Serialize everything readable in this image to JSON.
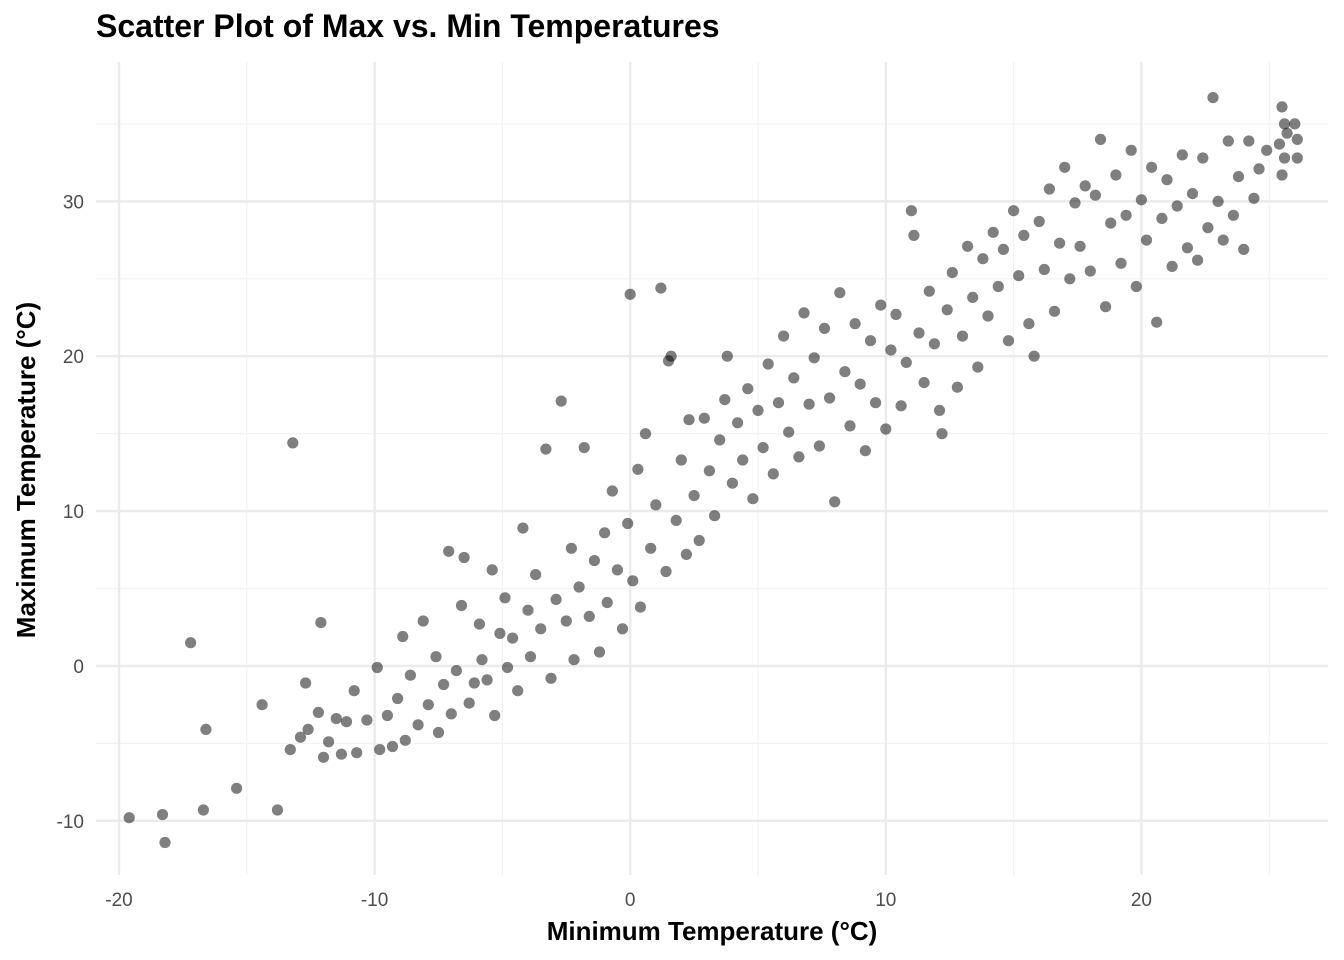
{
  "chart_data": {
    "type": "scatter",
    "title": "Scatter Plot of Max vs. Min Temperatures",
    "xlabel": "Minimum Temperature (°C)",
    "ylabel": "Maximum Temperature (°C)",
    "xlim": [
      -20.9,
      27.3
    ],
    "ylim": [
      -13.5,
      39.0
    ],
    "x_ticks": [
      -20,
      -10,
      0,
      10,
      20
    ],
    "x_tick_labels": [
      "-20",
      "-10",
      "0",
      "10",
      "20"
    ],
    "y_ticks": [
      -10,
      0,
      10,
      20,
      30
    ],
    "y_tick_labels": [
      "-10",
      "0",
      "10",
      "20",
      "30"
    ],
    "grid": true,
    "legend": "none",
    "point_color": "#000000",
    "point_alpha": 0.5,
    "points": [
      [
        -19.6,
        -9.8
      ],
      [
        -18.3,
        -9.6
      ],
      [
        -18.2,
        -11.4
      ],
      [
        -16.7,
        -9.3
      ],
      [
        -15.4,
        -7.9
      ],
      [
        -13.8,
        -9.3
      ],
      [
        -17.2,
        1.5
      ],
      [
        -16.6,
        -4.1
      ],
      [
        -14.4,
        -2.5
      ],
      [
        -13.2,
        14.4
      ],
      [
        -12.7,
        -1.1
      ],
      [
        -12.1,
        2.8
      ],
      [
        -13.3,
        -5.4
      ],
      [
        -12.9,
        -4.6
      ],
      [
        -12.6,
        -4.1
      ],
      [
        -12.2,
        -3.0
      ],
      [
        -12.0,
        -5.9
      ],
      [
        -11.8,
        -4.9
      ],
      [
        -11.5,
        -3.4
      ],
      [
        -11.3,
        -5.7
      ],
      [
        -11.1,
        -3.6
      ],
      [
        -10.8,
        -1.6
      ],
      [
        -10.7,
        -5.6
      ],
      [
        -10.3,
        -3.5
      ],
      [
        -9.9,
        -0.1
      ],
      [
        -9.8,
        -5.4
      ],
      [
        -9.5,
        -3.2
      ],
      [
        -9.3,
        -5.2
      ],
      [
        -9.1,
        -2.1
      ],
      [
        -8.9,
        1.9
      ],
      [
        -8.8,
        -4.8
      ],
      [
        -8.6,
        -0.6
      ],
      [
        -8.3,
        -3.8
      ],
      [
        -8.1,
        2.9
      ],
      [
        -7.9,
        -2.5
      ],
      [
        -7.6,
        0.6
      ],
      [
        -7.5,
        -4.3
      ],
      [
        -7.3,
        -1.2
      ],
      [
        -7.1,
        7.4
      ],
      [
        -7.0,
        -3.1
      ],
      [
        -6.8,
        -0.3
      ],
      [
        -6.6,
        3.9
      ],
      [
        -6.5,
        7.0
      ],
      [
        -6.3,
        -2.4
      ],
      [
        -6.1,
        -1.1
      ],
      [
        -5.9,
        2.7
      ],
      [
        -5.8,
        0.4
      ],
      [
        -5.6,
        -0.9
      ],
      [
        -5.4,
        6.2
      ],
      [
        -5.3,
        -3.2
      ],
      [
        -5.1,
        2.1
      ],
      [
        -4.9,
        4.4
      ],
      [
        -4.8,
        -0.1
      ],
      [
        -4.6,
        1.8
      ],
      [
        -4.4,
        -1.6
      ],
      [
        -4.2,
        8.9
      ],
      [
        -4.0,
        3.6
      ],
      [
        -3.9,
        0.6
      ],
      [
        -3.7,
        5.9
      ],
      [
        -3.5,
        2.4
      ],
      [
        -3.3,
        14.0
      ],
      [
        -3.1,
        -0.8
      ],
      [
        -2.9,
        4.3
      ],
      [
        -2.7,
        17.1
      ],
      [
        -2.5,
        2.9
      ],
      [
        -2.3,
        7.6
      ],
      [
        -2.2,
        0.4
      ],
      [
        -2.0,
        5.1
      ],
      [
        -1.8,
        14.1
      ],
      [
        -1.6,
        3.2
      ],
      [
        -1.4,
        6.8
      ],
      [
        -1.2,
        0.9
      ],
      [
        -1.0,
        8.6
      ],
      [
        -0.9,
        4.1
      ],
      [
        -0.7,
        11.3
      ],
      [
        -0.5,
        6.2
      ],
      [
        -0.3,
        2.4
      ],
      [
        -0.1,
        9.2
      ],
      [
        0.0,
        24.0
      ],
      [
        0.1,
        5.5
      ],
      [
        0.3,
        12.7
      ],
      [
        0.4,
        3.8
      ],
      [
        0.6,
        15.0
      ],
      [
        0.8,
        7.6
      ],
      [
        1.0,
        10.4
      ],
      [
        1.2,
        24.4
      ],
      [
        1.4,
        6.1
      ],
      [
        1.5,
        19.7
      ],
      [
        1.6,
        20.0
      ],
      [
        1.8,
        9.4
      ],
      [
        2.0,
        13.3
      ],
      [
        2.2,
        7.2
      ],
      [
        2.3,
        15.9
      ],
      [
        2.5,
        11.0
      ],
      [
        2.7,
        8.1
      ],
      [
        2.9,
        16.0
      ],
      [
        3.1,
        12.6
      ],
      [
        3.3,
        9.7
      ],
      [
        3.5,
        14.6
      ],
      [
        3.7,
        17.2
      ],
      [
        3.8,
        20.0
      ],
      [
        4.0,
        11.8
      ],
      [
        4.2,
        15.7
      ],
      [
        4.4,
        13.3
      ],
      [
        4.6,
        17.9
      ],
      [
        4.8,
        10.8
      ],
      [
        5.0,
        16.5
      ],
      [
        5.2,
        14.1
      ],
      [
        5.4,
        19.5
      ],
      [
        5.6,
        12.4
      ],
      [
        5.8,
        17.0
      ],
      [
        6.0,
        21.3
      ],
      [
        6.2,
        15.1
      ],
      [
        6.4,
        18.6
      ],
      [
        6.6,
        13.5
      ],
      [
        6.8,
        22.8
      ],
      [
        7.0,
        16.9
      ],
      [
        7.2,
        19.9
      ],
      [
        7.4,
        14.2
      ],
      [
        7.6,
        21.8
      ],
      [
        7.8,
        17.3
      ],
      [
        8.0,
        10.6
      ],
      [
        8.2,
        24.1
      ],
      [
        8.4,
        19.0
      ],
      [
        8.6,
        15.5
      ],
      [
        8.8,
        22.1
      ],
      [
        9.0,
        18.2
      ],
      [
        9.2,
        13.9
      ],
      [
        9.4,
        21.0
      ],
      [
        9.6,
        17.0
      ],
      [
        9.8,
        23.3
      ],
      [
        10.0,
        15.3
      ],
      [
        10.2,
        20.4
      ],
      [
        10.4,
        22.7
      ],
      [
        10.6,
        16.8
      ],
      [
        10.8,
        19.6
      ],
      [
        11.0,
        29.4
      ],
      [
        11.1,
        27.8
      ],
      [
        11.3,
        21.5
      ],
      [
        11.5,
        18.3
      ],
      [
        11.7,
        24.2
      ],
      [
        11.9,
        20.8
      ],
      [
        12.1,
        16.5
      ],
      [
        12.2,
        15.0
      ],
      [
        12.4,
        23.0
      ],
      [
        12.6,
        25.4
      ],
      [
        12.8,
        18.0
      ],
      [
        13.0,
        21.3
      ],
      [
        13.2,
        27.1
      ],
      [
        13.4,
        23.8
      ],
      [
        13.6,
        19.3
      ],
      [
        13.8,
        26.3
      ],
      [
        14.0,
        22.6
      ],
      [
        14.2,
        28.0
      ],
      [
        14.4,
        24.5
      ],
      [
        14.6,
        26.9
      ],
      [
        14.8,
        21.0
      ],
      [
        15.0,
        29.4
      ],
      [
        15.2,
        25.2
      ],
      [
        15.4,
        27.8
      ],
      [
        15.6,
        22.1
      ],
      [
        15.8,
        20.0
      ],
      [
        16.0,
        28.7
      ],
      [
        16.2,
        25.6
      ],
      [
        16.4,
        30.8
      ],
      [
        16.6,
        22.9
      ],
      [
        16.8,
        27.3
      ],
      [
        17.0,
        32.2
      ],
      [
        17.2,
        25.0
      ],
      [
        17.4,
        29.9
      ],
      [
        17.6,
        27.1
      ],
      [
        17.8,
        31.0
      ],
      [
        18.0,
        25.5
      ],
      [
        18.2,
        30.4
      ],
      [
        18.4,
        34.0
      ],
      [
        18.6,
        23.2
      ],
      [
        18.8,
        28.6
      ],
      [
        19.0,
        31.7
      ],
      [
        19.2,
        26.0
      ],
      [
        19.4,
        29.1
      ],
      [
        19.6,
        33.3
      ],
      [
        19.8,
        24.5
      ],
      [
        20.0,
        30.1
      ],
      [
        20.2,
        27.5
      ],
      [
        20.4,
        32.2
      ],
      [
        20.6,
        22.2
      ],
      [
        20.8,
        28.9
      ],
      [
        21.0,
        31.4
      ],
      [
        21.2,
        25.8
      ],
      [
        21.4,
        29.7
      ],
      [
        21.6,
        33.0
      ],
      [
        21.8,
        27.0
      ],
      [
        22.0,
        30.5
      ],
      [
        22.2,
        26.2
      ],
      [
        22.4,
        32.8
      ],
      [
        22.6,
        28.3
      ],
      [
        22.8,
        36.7
      ],
      [
        23.0,
        30.0
      ],
      [
        23.2,
        27.5
      ],
      [
        23.4,
        33.9
      ],
      [
        23.6,
        29.1
      ],
      [
        23.8,
        31.6
      ],
      [
        24.0,
        26.9
      ],
      [
        24.2,
        33.9
      ],
      [
        24.4,
        30.2
      ],
      [
        24.6,
        32.1
      ],
      [
        24.9,
        33.3
      ],
      [
        25.5,
        36.1
      ],
      [
        25.6,
        35.0
      ],
      [
        25.7,
        34.4
      ],
      [
        25.5,
        31.7
      ],
      [
        25.6,
        32.8
      ],
      [
        26.1,
        34.0
      ],
      [
        26.0,
        35.0
      ],
      [
        26.1,
        32.8
      ],
      [
        25.4,
        33.7
      ]
    ]
  }
}
